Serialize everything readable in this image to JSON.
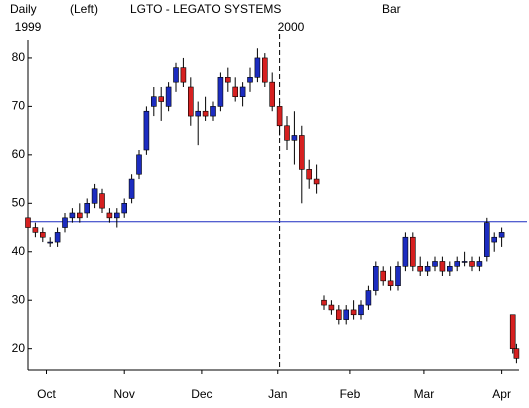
{
  "chart_data": {
    "type": "candlestick",
    "header": {
      "period": "Daily",
      "scale": "(Left)",
      "title": "LGTO - LEGATO SYSTEMS",
      "style": "Bar"
    },
    "year_ticks": [
      {
        "value": 0,
        "label": "1999"
      },
      {
        "value": 68,
        "label": "2000"
      }
    ],
    "x": [
      0,
      2,
      4,
      6,
      8,
      10,
      12,
      14,
      16,
      18,
      20,
      22,
      24,
      26,
      28,
      30,
      32,
      34,
      36,
      38,
      40,
      42,
      44,
      46,
      48,
      50,
      52,
      54,
      56,
      58,
      60,
      62,
      64,
      66,
      68,
      70,
      72,
      74,
      76,
      78,
      80,
      82,
      84,
      86,
      88,
      90,
      92,
      94,
      96,
      98,
      100,
      102,
      104,
      106,
      108,
      110,
      112,
      114,
      116,
      118,
      120,
      122,
      124,
      126,
      128,
      131,
      132
    ],
    "open": [
      47,
      45,
      44,
      42,
      42,
      45,
      47,
      48,
      48,
      50,
      52,
      48,
      47,
      48,
      51,
      56,
      61,
      70,
      72,
      70,
      75,
      78,
      74,
      68,
      69,
      68,
      70,
      76,
      74,
      72,
      75,
      76,
      80,
      75,
      70,
      66,
      63,
      64,
      57,
      55,
      30,
      29,
      28,
      26,
      28,
      27,
      29,
      32,
      36,
      34,
      33,
      37,
      43,
      37,
      36,
      37,
      38,
      36,
      37,
      38,
      38,
      37,
      39,
      42,
      43,
      27,
      20
    ],
    "high": [
      49,
      46,
      45,
      43,
      45,
      48,
      49,
      50,
      51,
      54,
      53,
      49,
      49,
      51,
      56,
      61,
      70,
      74,
      74,
      75,
      79,
      80,
      76,
      71,
      72,
      71,
      77,
      78,
      76,
      75,
      78,
      82,
      81,
      77,
      71,
      68,
      69,
      66,
      59,
      58,
      31,
      30,
      29,
      29,
      30,
      30,
      33,
      38,
      37,
      37,
      38,
      44,
      44,
      39,
      38,
      39,
      39,
      38,
      39,
      40,
      39,
      39,
      47,
      44,
      45,
      27,
      21
    ],
    "low": [
      44,
      43,
      42,
      41,
      41,
      44,
      46,
      46,
      47,
      49,
      48,
      46,
      45,
      47,
      50,
      55,
      60,
      68,
      67,
      69,
      73,
      74,
      66,
      62,
      67,
      67,
      69,
      73,
      71,
      70,
      73,
      75,
      74,
      69,
      64,
      61,
      58,
      50,
      53,
      52,
      28,
      27,
      25,
      25,
      26,
      26,
      28,
      31,
      33,
      32,
      32,
      36,
      36,
      35,
      35,
      36,
      35,
      35,
      36,
      37,
      36,
      36,
      38,
      40,
      41,
      19,
      17
    ],
    "close": [
      45,
      44,
      43,
      42,
      44,
      47,
      48,
      47,
      50,
      53,
      49,
      47,
      48,
      50,
      55,
      60,
      69,
      72,
      71,
      74,
      78,
      75,
      68,
      69,
      68,
      70,
      76,
      75,
      72,
      74,
      76,
      80,
      75,
      70,
      66,
      63,
      64,
      57,
      55,
      54,
      29,
      28,
      26,
      28,
      27,
      29,
      32,
      37,
      34,
      33,
      37,
      43,
      37,
      36,
      37,
      38,
      36,
      37,
      38,
      38,
      37,
      38,
      46,
      43,
      44,
      20,
      18
    ],
    "up_color": "#1c2cc0",
    "down_color": "#d62020",
    "reference_line": 46.2,
    "reference_color": "#1c2cc0",
    "xlim": [
      0,
      132.7
    ],
    "xticks": [
      {
        "value": 5,
        "label": "Oct"
      },
      {
        "value": 26,
        "label": "Nov"
      },
      {
        "value": 47,
        "label": "Dec"
      },
      {
        "value": 67.5,
        "label": "Jan"
      },
      {
        "value": 87,
        "label": "Feb"
      },
      {
        "value": 107,
        "label": "Mar"
      },
      {
        "value": 128,
        "label": "Apr"
      }
    ],
    "ylim": [
      15.6,
      83.7
    ],
    "yticks": [
      20,
      30,
      40,
      50,
      60,
      70,
      80
    ]
  }
}
